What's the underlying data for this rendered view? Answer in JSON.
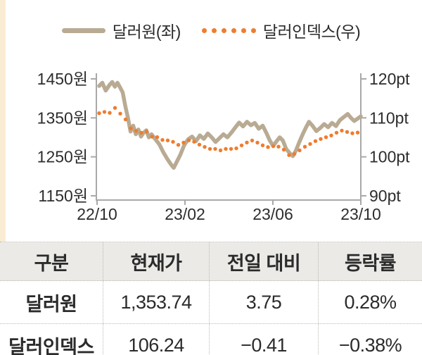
{
  "colors": {
    "tan": "#b9ab93",
    "orange": "#ee7d2f",
    "axis": "#a9a9a9",
    "header_bg": "#ebeae7",
    "strip": "#f9ecd2",
    "text": "#2b2b2b"
  },
  "legend": {
    "items": [
      {
        "label": "달러원(좌)",
        "style": "solid",
        "color": "#b9ab93"
      },
      {
        "label": "달러인덱스(우)",
        "style": "dotted",
        "color": "#ee7d2f"
      }
    ]
  },
  "chart_data": {
    "type": "line",
    "title": "",
    "x_axis": {
      "labels": [
        "22/10",
        "23/02",
        "23/06",
        "23/10"
      ]
    },
    "left_axis": {
      "unit": "원",
      "min": 1150,
      "max": 1450,
      "step": 100,
      "labels": [
        "1450원",
        "1350원",
        "1250원",
        "1150원"
      ]
    },
    "right_axis": {
      "unit": "pt",
      "min": 90,
      "max": 120,
      "step": 10,
      "labels": [
        "120pt",
        "110pt",
        "100pt",
        "90pt"
      ]
    },
    "grid": false,
    "legend_position": "top",
    "series": [
      {
        "name": "달러원(좌)",
        "axis": "left",
        "style": "solid",
        "color": "#b9ab93",
        "x": [
          0,
          0.012,
          0.025,
          0.04,
          0.05,
          0.06,
          0.07,
          0.08,
          0.09,
          0.1,
          0.11,
          0.12,
          0.13,
          0.14,
          0.15,
          0.16,
          0.17,
          0.18,
          0.19,
          0.2,
          0.215,
          0.23,
          0.245,
          0.26,
          0.275,
          0.285,
          0.295,
          0.31,
          0.325,
          0.34,
          0.355,
          0.37,
          0.385,
          0.4,
          0.415,
          0.43,
          0.445,
          0.46,
          0.475,
          0.49,
          0.505,
          0.52,
          0.535,
          0.55,
          0.565,
          0.58,
          0.595,
          0.61,
          0.625,
          0.64,
          0.652,
          0.665,
          0.678,
          0.69,
          0.702,
          0.715,
          0.73,
          0.74,
          0.752,
          0.765,
          0.778,
          0.79,
          0.802,
          0.815,
          0.83,
          0.845,
          0.86,
          0.875,
          0.89,
          0.905,
          0.92,
          0.935,
          0.95,
          0.962,
          0.975,
          0.988,
          1.0
        ],
        "values": [
          1432,
          1440,
          1420,
          1435,
          1442,
          1430,
          1440,
          1428,
          1415,
          1380,
          1350,
          1315,
          1330,
          1308,
          1320,
          1302,
          1312,
          1318,
          1300,
          1308,
          1295,
          1282,
          1262,
          1245,
          1230,
          1222,
          1235,
          1255,
          1280,
          1295,
          1302,
          1290,
          1305,
          1296,
          1310,
          1300,
          1288,
          1298,
          1308,
          1300,
          1312,
          1325,
          1338,
          1328,
          1340,
          1331,
          1337,
          1322,
          1330,
          1310,
          1292,
          1278,
          1290,
          1300,
          1292,
          1270,
          1258,
          1252,
          1266,
          1288,
          1308,
          1325,
          1340,
          1330,
          1316,
          1324,
          1334,
          1326,
          1337,
          1329,
          1344,
          1352,
          1360,
          1350,
          1342,
          1348,
          1354
        ]
      },
      {
        "name": "달러인덱스(우)",
        "axis": "right",
        "style": "dotted",
        "color": "#ee7d2f",
        "x": [
          0,
          0.015,
          0.03,
          0.045,
          0.06,
          0.075,
          0.09,
          0.105,
          0.12,
          0.135,
          0.15,
          0.165,
          0.18,
          0.195,
          0.21,
          0.225,
          0.24,
          0.255,
          0.27,
          0.285,
          0.3,
          0.315,
          0.33,
          0.345,
          0.36,
          0.375,
          0.39,
          0.405,
          0.42,
          0.435,
          0.45,
          0.465,
          0.48,
          0.495,
          0.51,
          0.525,
          0.54,
          0.555,
          0.57,
          0.585,
          0.6,
          0.615,
          0.63,
          0.645,
          0.66,
          0.675,
          0.69,
          0.705,
          0.72,
          0.735,
          0.75,
          0.765,
          0.78,
          0.795,
          0.81,
          0.825,
          0.84,
          0.855,
          0.87,
          0.885,
          0.9,
          0.915,
          0.93,
          0.945,
          0.96,
          0.975,
          1.0
        ],
        "values": [
          111.2,
          112.0,
          110.6,
          111.6,
          112.6,
          111.4,
          110.6,
          109.2,
          107.4,
          106.4,
          107.0,
          105.9,
          106.6,
          105.4,
          104.9,
          105.1,
          104.4,
          103.9,
          104.6,
          103.7,
          103.0,
          103.4,
          103.9,
          104.3,
          104.0,
          103.4,
          102.9,
          102.5,
          102.1,
          101.8,
          102.2,
          101.6,
          101.9,
          102.4,
          101.8,
          102.2,
          102.8,
          103.3,
          103.9,
          104.2,
          103.8,
          103.3,
          102.8,
          102.5,
          102.9,
          102.4,
          102.7,
          101.9,
          100.6,
          100.2,
          100.9,
          101.6,
          102.3,
          103.0,
          103.4,
          104.0,
          104.4,
          104.8,
          105.1,
          105.4,
          106.0,
          106.4,
          106.8,
          106.5,
          105.9,
          106.2,
          106.24
        ]
      }
    ]
  },
  "table": {
    "headers": [
      "구분",
      "현재가",
      "전일 대비",
      "등락률"
    ],
    "rows": [
      [
        "달러원",
        "1,353.74",
        "3.75",
        "0.28%"
      ],
      [
        "달러인덱스",
        "106.24",
        "−0.41",
        "−0.38%"
      ]
    ]
  }
}
